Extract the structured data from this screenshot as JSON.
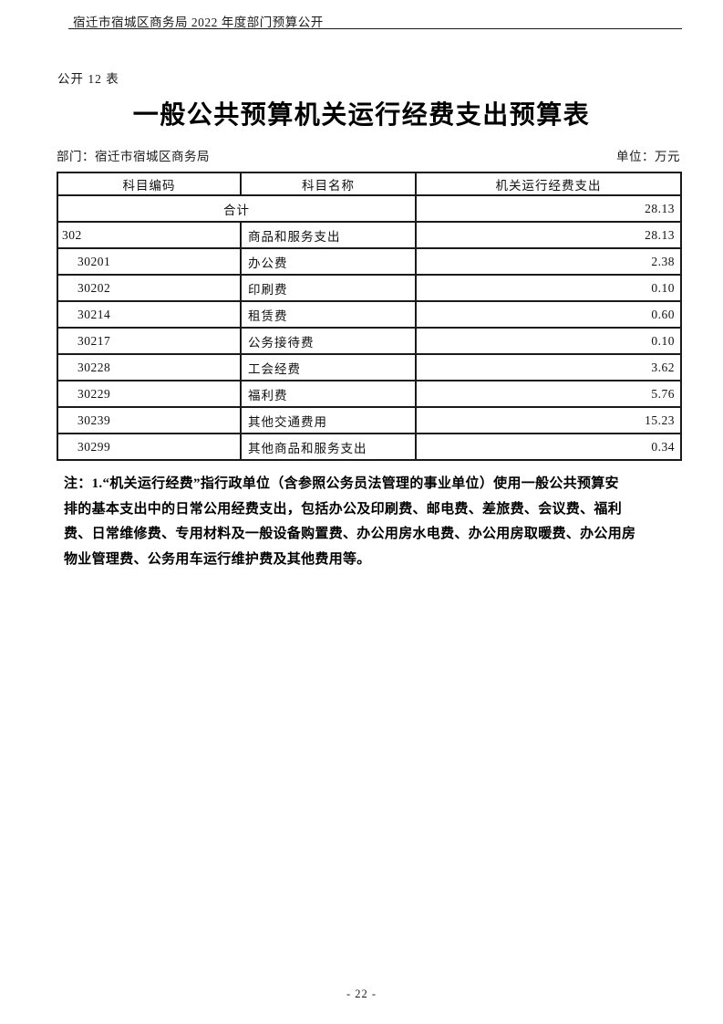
{
  "page": {
    "header_text": "宿迁市宿城区商务局 2022 年度部门预算公开",
    "table_label": "公开 12 表",
    "title": "一般公共预算机关运行经费支出预算表",
    "department_label": "部门：宿迁市宿城区商务局",
    "unit_label": "单位：万元",
    "page_number": "- 22 -"
  },
  "table": {
    "columns": [
      "科目编码",
      "科目名称",
      "机关运行经费支出"
    ],
    "total_row": {
      "label": "合计",
      "value": "28.13"
    },
    "rows": [
      {
        "code": "302",
        "name": "商品和服务支出",
        "value": "28.13"
      },
      {
        "code": "30201",
        "name": "办公费",
        "value": "2.38"
      },
      {
        "code": "30202",
        "name": "印刷费",
        "value": "0.10"
      },
      {
        "code": "30214",
        "name": "租赁费",
        "value": "0.60"
      },
      {
        "code": "30217",
        "name": "公务接待费",
        "value": "0.10"
      },
      {
        "code": "30228",
        "name": "工会经费",
        "value": "3.62"
      },
      {
        "code": "30229",
        "name": "福利费",
        "value": "5.76"
      },
      {
        "code": "30239",
        "name": "其他交通费用",
        "value": "15.23"
      },
      {
        "code": "30299",
        "name": "其他商品和服务支出",
        "value": "0.34"
      }
    ]
  },
  "note": {
    "lines": [
      "注：1.“机关运行经费”指行政单位（含参照公务员法管理的事业单位）使用一般公共预算安",
      "排的基本支出中的日常公用经费支出，包括办公及印刷费、邮电费、差旅费、会议费、福利",
      "费、日常维修费、专用材料及一般设备购置费、办公用房水电费、办公用房取暖费、办公用房",
      "物业管理费、公务用车运行维护费及其他费用等。"
    ]
  }
}
